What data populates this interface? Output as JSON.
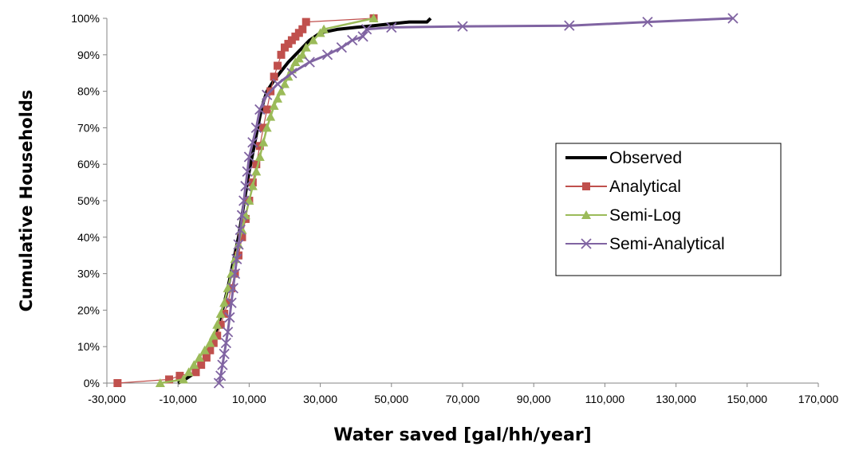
{
  "chart_data": {
    "type": "line",
    "title": "",
    "xlabel": "Water saved [gal/hh/year]",
    "ylabel": "Cumulative Households",
    "xlim": [
      -30000,
      170000
    ],
    "ylim": [
      0,
      1
    ],
    "x_ticks": [
      -30000,
      -10000,
      10000,
      30000,
      50000,
      70000,
      90000,
      110000,
      130000,
      150000,
      170000
    ],
    "x_tick_labels": [
      "-30,000",
      "-10,000",
      "10,000",
      "30,000",
      "50,000",
      "70,000",
      "90,000",
      "110,000",
      "130,000",
      "150,000",
      "170,000"
    ],
    "y_ticks": [
      0,
      0.1,
      0.2,
      0.3,
      0.4,
      0.5,
      0.6,
      0.7,
      0.8,
      0.9,
      1.0
    ],
    "y_tick_labels": [
      "0%",
      "10%",
      "20%",
      "30%",
      "40%",
      "50%",
      "60%",
      "70%",
      "80%",
      "90%",
      "100%"
    ],
    "grid": false,
    "legend": "right",
    "series": [
      {
        "name": "Observed",
        "color": "#000000",
        "marker": "none",
        "x": [
          -10000,
          -8000,
          -5000,
          -3000,
          -1000,
          1000,
          2500,
          4000,
          5500,
          7000,
          8000,
          9000,
          10000,
          11000,
          12000,
          13000,
          14000,
          15000,
          17000,
          19000,
          21000,
          23000,
          25000,
          27000,
          30000,
          35000,
          40000,
          45000,
          50000,
          55000,
          60000,
          61000
        ],
        "y": [
          0,
          0.01,
          0.03,
          0.06,
          0.1,
          0.15,
          0.2,
          0.26,
          0.33,
          0.4,
          0.46,
          0.52,
          0.58,
          0.63,
          0.68,
          0.73,
          0.77,
          0.8,
          0.83,
          0.855,
          0.88,
          0.9,
          0.92,
          0.94,
          0.96,
          0.97,
          0.975,
          0.98,
          0.985,
          0.99,
          0.99,
          1.0
        ]
      },
      {
        "name": "Analytical",
        "color": "#c0504d",
        "marker": "square",
        "x": [
          -27000,
          -12500,
          -9500,
          -5000,
          -3500,
          -2000,
          -1000,
          0,
          1000,
          2000,
          3000,
          4000,
          5000,
          6000,
          7000,
          8000,
          9000,
          10000,
          11000,
          12000,
          13000,
          14000,
          15000,
          16000,
          17000,
          18000,
          19000,
          20000,
          21000,
          22000,
          23000,
          24000,
          25000,
          26000,
          45000
        ],
        "y": [
          0,
          0.01,
          0.02,
          0.03,
          0.05,
          0.07,
          0.09,
          0.11,
          0.13,
          0.16,
          0.19,
          0.22,
          0.26,
          0.3,
          0.35,
          0.4,
          0.45,
          0.5,
          0.55,
          0.6,
          0.65,
          0.7,
          0.75,
          0.8,
          0.84,
          0.87,
          0.9,
          0.92,
          0.93,
          0.94,
          0.95,
          0.96,
          0.97,
          0.99,
          1.0
        ]
      },
      {
        "name": "Semi-Log",
        "color": "#9bbb59",
        "marker": "triangle",
        "x": [
          -15000,
          -8500,
          -7000,
          -5500,
          -4000,
          -2500,
          -1000,
          0,
          1000,
          2000,
          3000,
          4000,
          5000,
          6000,
          7000,
          8000,
          9000,
          10000,
          11000,
          12000,
          13000,
          14000,
          15000,
          16000,
          17000,
          18000,
          19000,
          20000,
          21000,
          22000,
          23000,
          24000,
          25000,
          26000,
          28000,
          30000,
          31000,
          45000
        ],
        "y": [
          0,
          0.01,
          0.03,
          0.05,
          0.07,
          0.09,
          0.11,
          0.13,
          0.16,
          0.19,
          0.22,
          0.26,
          0.3,
          0.34,
          0.38,
          0.42,
          0.46,
          0.5,
          0.54,
          0.58,
          0.62,
          0.66,
          0.7,
          0.73,
          0.76,
          0.78,
          0.8,
          0.82,
          0.84,
          0.86,
          0.88,
          0.89,
          0.9,
          0.92,
          0.94,
          0.96,
          0.97,
          1.0
        ]
      },
      {
        "name": "Semi-Analytical",
        "color": "#8064a2",
        "marker": "x",
        "x": [
          1500,
          2000,
          2500,
          3000,
          3500,
          4000,
          4500,
          5000,
          5500,
          6000,
          6500,
          7000,
          7500,
          8000,
          8500,
          9000,
          9500,
          10000,
          11000,
          12000,
          13000,
          15000,
          18000,
          22000,
          27000,
          32000,
          36000,
          39000,
          42000,
          43000,
          50000,
          70000,
          100000,
          122000,
          146000
        ],
        "y": [
          0,
          0.02,
          0.05,
          0.08,
          0.11,
          0.14,
          0.18,
          0.22,
          0.26,
          0.3,
          0.34,
          0.38,
          0.42,
          0.46,
          0.5,
          0.54,
          0.58,
          0.62,
          0.66,
          0.7,
          0.75,
          0.79,
          0.82,
          0.85,
          0.88,
          0.9,
          0.92,
          0.94,
          0.95,
          0.97,
          0.975,
          0.978,
          0.98,
          0.99,
          1.0
        ]
      }
    ]
  }
}
